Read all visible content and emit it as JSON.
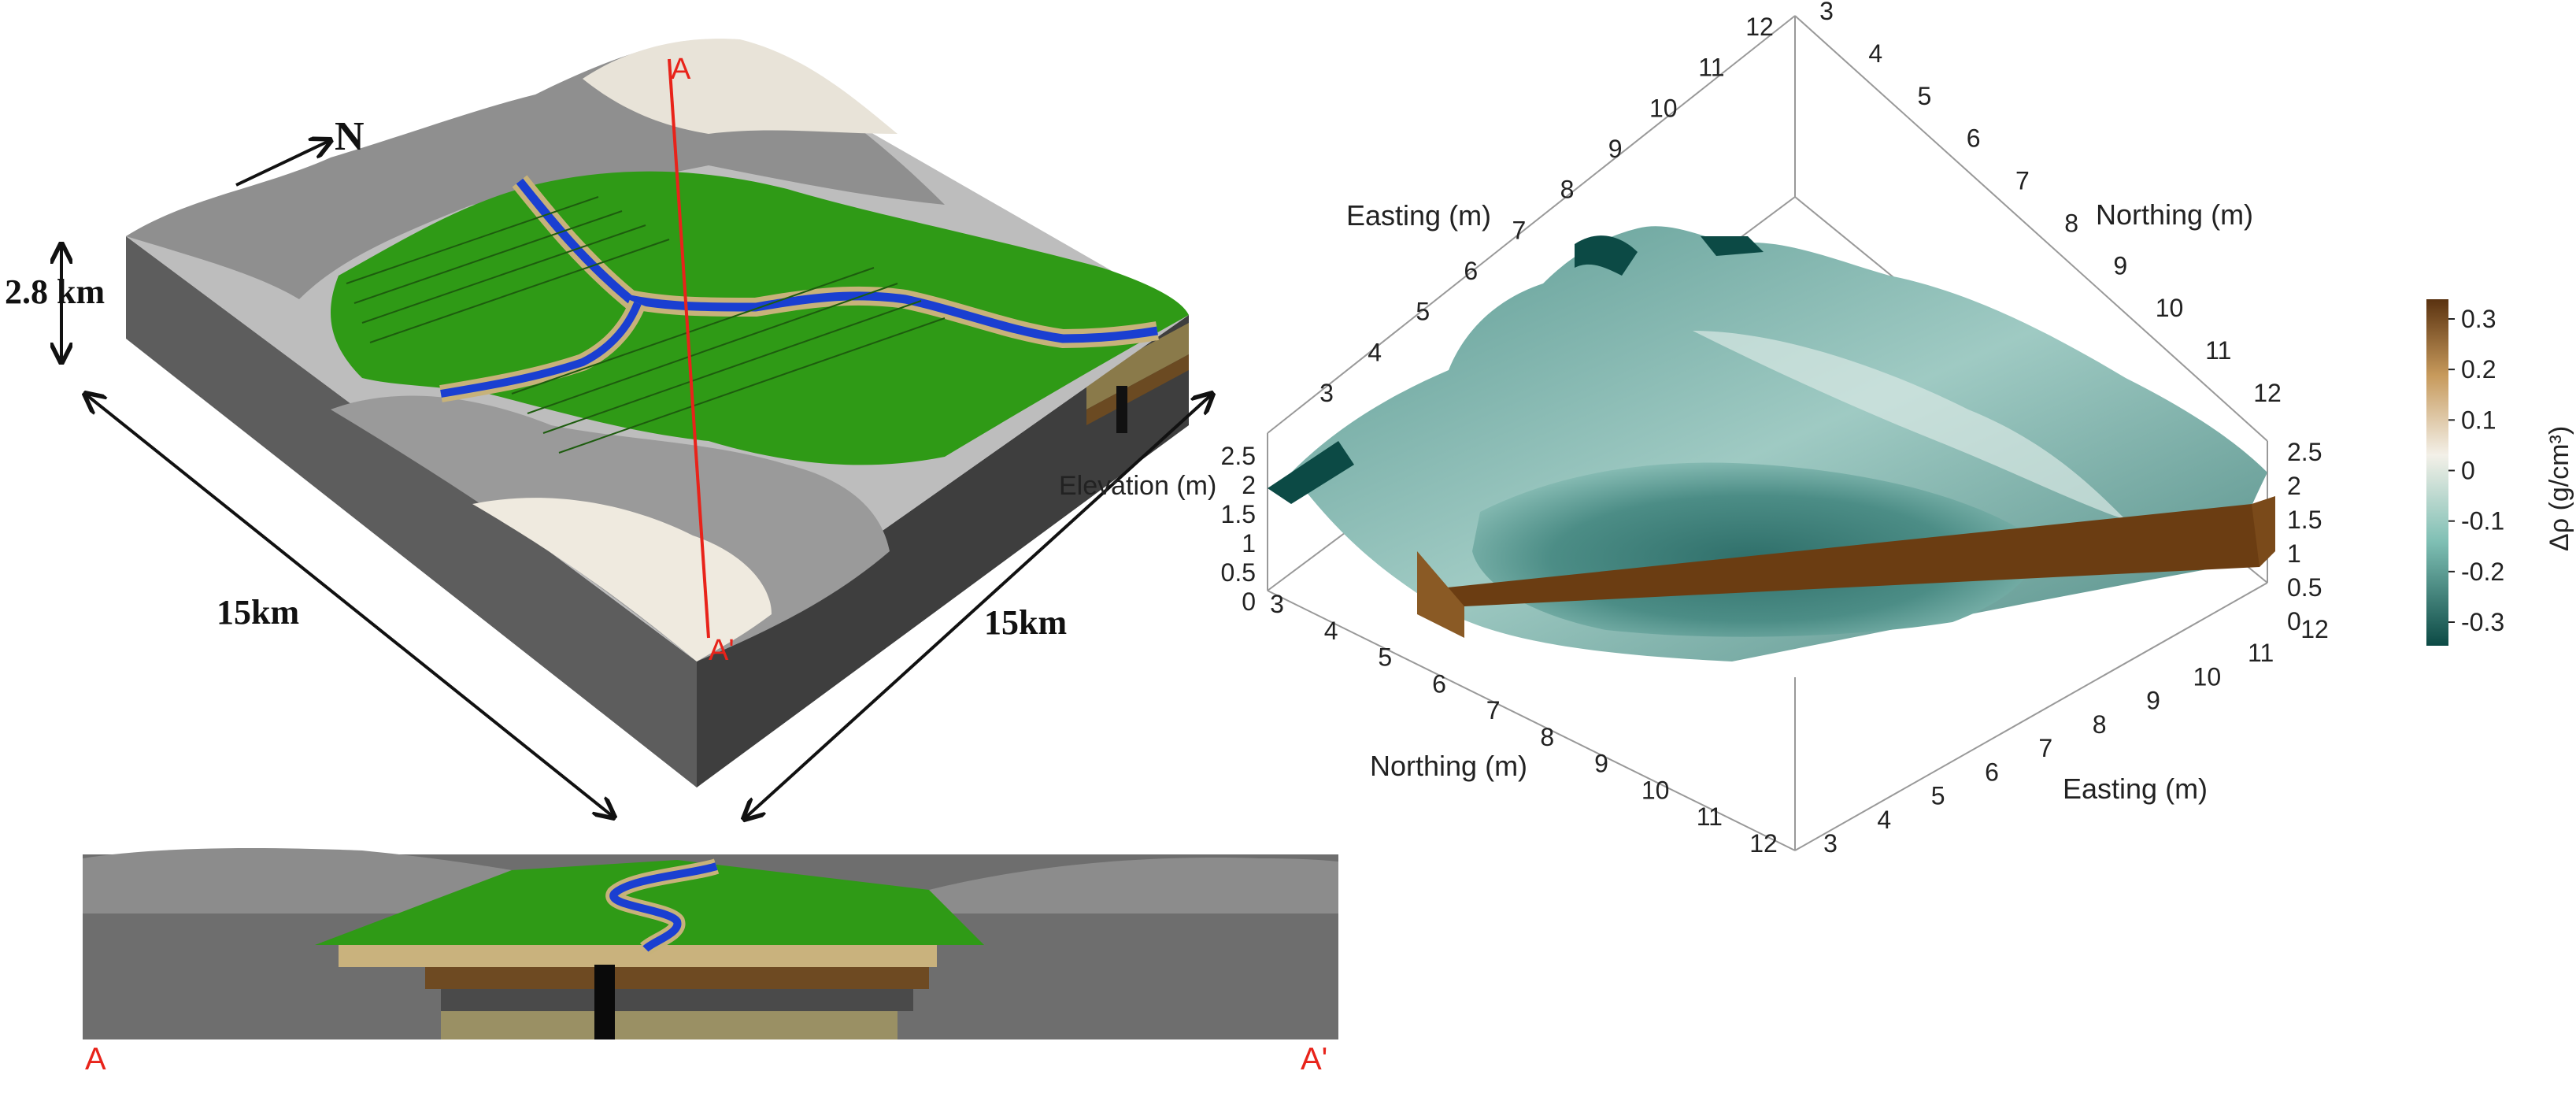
{
  "model_view": {
    "north_label": "N",
    "height_label": "2.8 km",
    "width_left_label": "15km",
    "width_right_label": "15km",
    "section_start": "A",
    "section_end": "A'"
  },
  "cross_section": {
    "left_label": "A",
    "right_label": "A'"
  },
  "inversion_view": {
    "easting_label_top": "Easting (m)",
    "northing_label_top": "Northing (m)",
    "elevation_label": "Elevation (m)",
    "northing_label_bottom": "Northing (m)",
    "easting_label_bottom": "Easting (m)",
    "ticks_top_left": [
      "3",
      "4",
      "5",
      "6",
      "7",
      "8",
      "9",
      "10",
      "11",
      "12"
    ],
    "ticks_top_right": [
      "3",
      "4",
      "5",
      "6",
      "7",
      "8",
      "9",
      "10",
      "11",
      "12"
    ],
    "ticks_elev_left": [
      "0",
      "0.5",
      "1",
      "1.5",
      "2",
      "2.5"
    ],
    "ticks_elev_right": [
      "0",
      "0.5",
      "1",
      "1.5",
      "2",
      "2.5"
    ],
    "ticks_bottom_left": [
      "3",
      "4",
      "5",
      "6",
      "7",
      "8",
      "9",
      "10",
      "11",
      "12"
    ],
    "ticks_bottom_right": [
      "3",
      "4",
      "5",
      "6",
      "7",
      "8",
      "9",
      "10",
      "11",
      "12"
    ]
  },
  "colorbar": {
    "title": "Δρ (g/cm³)",
    "ticks": [
      "0.3",
      "0.2",
      "0.1",
      "0",
      "-0.1",
      "-0.2",
      "-0.3"
    ],
    "colors": {
      "top": "#6b3d12",
      "upper": "#c79a5c",
      "mid": "#f3f0e8",
      "lower": "#8ec7bd",
      "bottom": "#0c4a45"
    }
  }
}
